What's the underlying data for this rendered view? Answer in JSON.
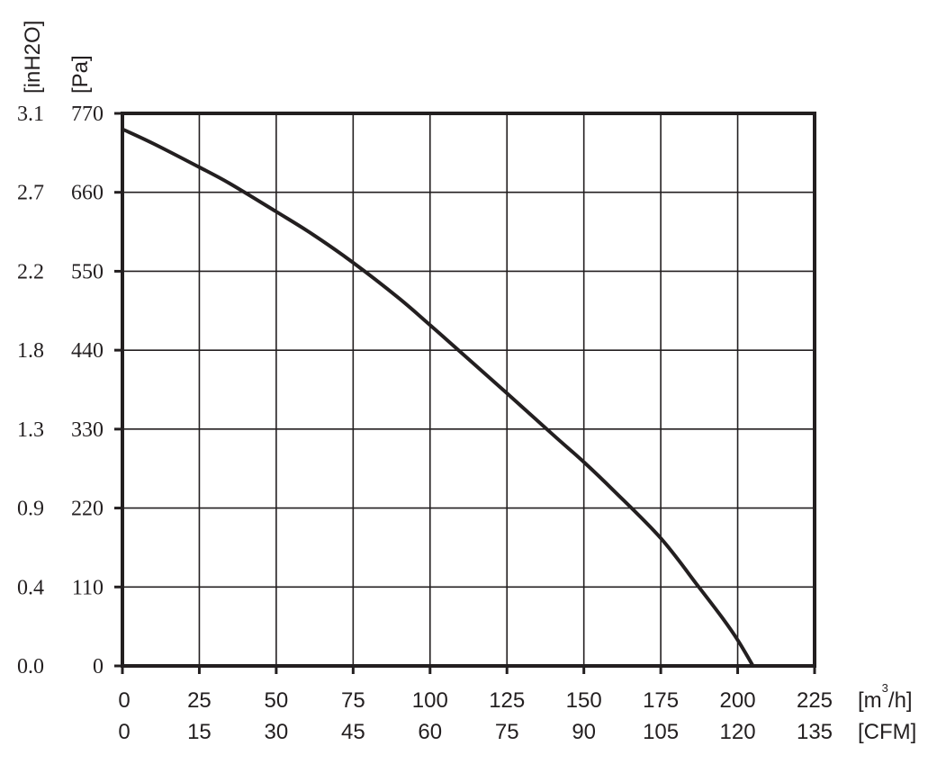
{
  "chart_data": {
    "type": "line",
    "title": "",
    "x_primary": {
      "unit_prefix": "[m",
      "unit_superscript": "3",
      "unit_suffix": "/h]",
      "range": [
        0,
        225
      ],
      "ticks": [
        "0",
        "25",
        "50",
        "75",
        "100",
        "125",
        "150",
        "175",
        "200",
        "225"
      ]
    },
    "x_secondary": {
      "unit": "[CFM]",
      "ticks": [
        "0",
        "15",
        "30",
        "45",
        "60",
        "75",
        "90",
        "105",
        "120",
        "135"
      ]
    },
    "y_primary": {
      "unit": "[Pa]",
      "range": [
        0,
        770
      ],
      "ticks": [
        "0",
        "110",
        "220",
        "330",
        "440",
        "550",
        "660",
        "770"
      ]
    },
    "y_secondary": {
      "unit": "[inH2O]",
      "ticks": [
        "0.0",
        "0.4",
        "0.9",
        "1.3",
        "1.8",
        "2.2",
        "2.7",
        "3.1"
      ]
    },
    "grid": true,
    "series": [
      {
        "x": [
          0,
          10,
          25,
          35,
          50,
          62,
          75,
          90,
          100,
          110,
          125,
          140,
          150,
          160,
          175,
          187,
          195,
          200,
          205
        ],
        "y": [
          748,
          728,
          695,
          672,
          633,
          601,
          562,
          512,
          475,
          437,
          380,
          322,
          284,
          243,
          178,
          112,
          67,
          36,
          0
        ]
      }
    ],
    "color": "#231f20"
  }
}
